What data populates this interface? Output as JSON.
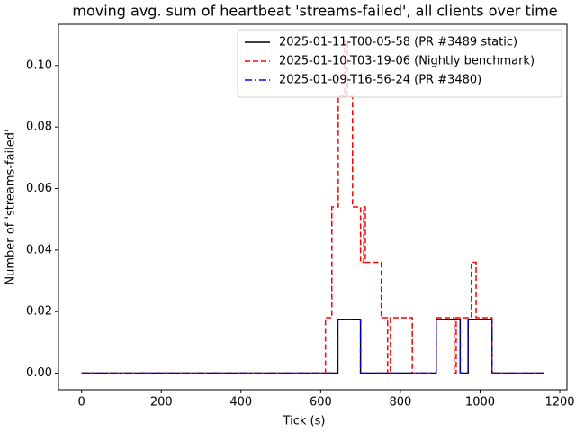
{
  "chart_data": {
    "type": "line",
    "drawstyle": "steps-post",
    "title": "moving avg. sum of heartbeat 'streams-failed', all clients over time",
    "xlabel": "Tick (s)",
    "ylabel": "Number of 'streams-failed'",
    "xlim": [
      -58,
      1218
    ],
    "ylim": [
      -0.0054,
      0.1134
    ],
    "xticks": [
      0,
      200,
      400,
      600,
      800,
      1000,
      1200
    ],
    "yticks": [
      {
        "value": 0,
        "label": "0.00"
      },
      {
        "value": 0.02,
        "label": "0.02"
      },
      {
        "value": 0.04,
        "label": "0.04"
      },
      {
        "value": 0.06,
        "label": "0.06"
      },
      {
        "value": 0.08,
        "label": "0.08"
      },
      {
        "value": 0.1,
        "label": "0.10"
      }
    ],
    "grid": false,
    "legend": "upper right",
    "series": [
      {
        "name": "2025-01-11-T00-05-58 (PR #3489 static)",
        "color": "#000000",
        "dash": "solid",
        "x": [
          0,
          643,
          700,
          890,
          950,
          970,
          1030,
          1160
        ],
        "values": [
          0,
          0.0175,
          0,
          0.0175,
          0,
          0.0175,
          0,
          0
        ]
      },
      {
        "name": "2025-01-10-T03-19-06 (Nightly benchmark)",
        "color": "#ff0000",
        "dash": "dashed",
        "x": [
          0,
          612,
          628,
          644,
          660,
          667,
          680,
          700,
          708,
          712,
          752,
          768,
          775,
          830,
          890,
          935,
          940,
          978,
          990,
          1030,
          1160
        ],
        "values": [
          0,
          0.018,
          0.054,
          0.09,
          0.108,
          0.09,
          0.054,
          0.036,
          0.054,
          0.036,
          0.018,
          0,
          0.018,
          0,
          0.018,
          0,
          0.018,
          0.036,
          0.018,
          0,
          0
        ]
      },
      {
        "name": "2025-01-09-T16-56-24 (PR #3480)",
        "color": "#0000ff",
        "dash": "dashdot",
        "x": [
          0,
          643,
          700,
          890,
          950,
          970,
          1030,
          1160
        ],
        "values": [
          0,
          0.0175,
          0,
          0.0175,
          0,
          0.0175,
          0,
          0
        ]
      }
    ]
  }
}
